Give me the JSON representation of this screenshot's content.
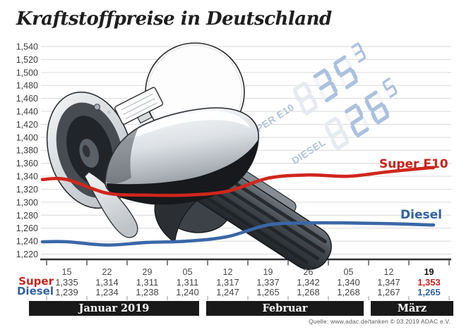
{
  "title": "Kraftstoffpreise in Deutschland",
  "source": "Quelle: www.adac.de/tanken   © 03.2019   ADAC e.V.",
  "series_labels": {
    "super": "Super E10",
    "diesel": "Diesel"
  },
  "row_labels": {
    "super": "Super",
    "diesel": "Diesel"
  },
  "months": [
    {
      "label": "Januar 2019"
    },
    {
      "label": "Februar"
    },
    {
      "label": "März"
    }
  ],
  "watermark": {
    "rows": [
      {
        "label": "SUPER E10",
        "ghost": "8",
        "digits": "35",
        "sup": "3"
      },
      {
        "label": "DIESEL",
        "ghost": "8",
        "digits": "26",
        "sup": "5"
      }
    ],
    "on_color": "#a7bedd",
    "off_color": "#e4e8f0",
    "label_color": "#b2c3dc"
  },
  "colors": {
    "super_line": "#d0261c",
    "super_label": "#c3241c",
    "diesel_line": "#3a67a7",
    "diesel_label": "#33619e",
    "grid": "#dadada",
    "axis": "#2e2e2e",
    "tick_minor": "#9a9a9a",
    "month_bar_bg": "#191919",
    "month_bar_text": "#ffffff",
    "value_text": "#454545"
  },
  "chart_data": {
    "type": "line",
    "title": "Kraftstoffpreise in Deutschland",
    "categories": [
      "15",
      "22",
      "29",
      "05",
      "12",
      "19",
      "26",
      "05",
      "12",
      "19"
    ],
    "month_groups": [
      "Januar 2019",
      "Februar",
      "März"
    ],
    "series": [
      {
        "name": "Super",
        "legend": "Super E10",
        "color": "#d0261c",
        "values": [
          1335,
          1314,
          1311,
          1311,
          1317,
          1337,
          1342,
          1340,
          1347,
          1353
        ],
        "display": [
          "1,335",
          "1,314",
          "1,311",
          "1,311",
          "1,317",
          "1,337",
          "1,342",
          "1,340",
          "1,347",
          "1,353"
        ]
      },
      {
        "name": "Diesel",
        "legend": "Diesel",
        "color": "#3a67a7",
        "values": [
          1239,
          1234,
          1238,
          1240,
          1247,
          1265,
          1268,
          1268,
          1267,
          1265
        ],
        "display": [
          "1,239",
          "1,234",
          "1,238",
          "1,240",
          "1,247",
          "1,265",
          "1,268",
          "1,268",
          "1,267",
          "1,265"
        ]
      }
    ],
    "ylim": [
      1220,
      1540
    ],
    "ytick_step": 20,
    "grid": true,
    "legend_position": "inline-right"
  }
}
